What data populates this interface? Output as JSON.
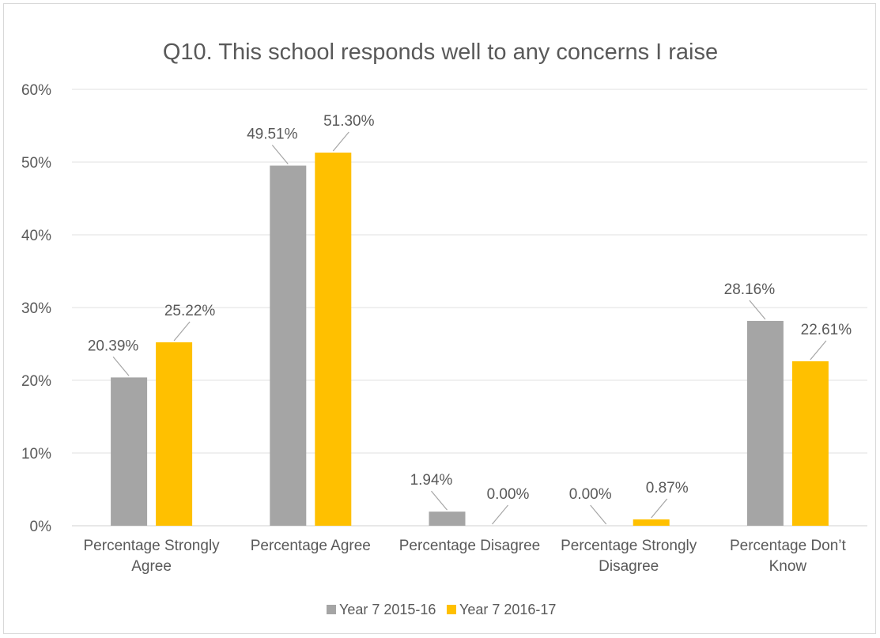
{
  "chart_data": {
    "type": "bar",
    "title": "Q10. This school responds well to any concerns I raise",
    "xlabel": "",
    "ylabel": "",
    "categories": [
      [
        "Percentage Strongly",
        "Agree"
      ],
      [
        "Percentage Agree"
      ],
      [
        "Percentage Disagree"
      ],
      [
        "Percentage Strongly",
        "Disagree"
      ],
      [
        "Percentage Don’t",
        "Know"
      ]
    ],
    "series": [
      {
        "name": "Year 7 2015-16",
        "color": "#a5a5a5",
        "values": [
          20.39,
          49.51,
          1.94,
          0.0,
          28.16
        ],
        "labels": [
          "20.39%",
          "49.51%",
          "1.94%",
          "0.00%",
          "28.16%"
        ]
      },
      {
        "name": "Year 7 2016-17",
        "color": "#ffc000",
        "values": [
          25.22,
          51.3,
          0.0,
          0.87,
          22.61
        ],
        "labels": [
          "25.22%",
          "51.30%",
          "0.00%",
          "0.87%",
          "22.61%"
        ]
      }
    ],
    "ylim": [
      0,
      60
    ],
    "yticks": [
      "0%",
      "10%",
      "20%",
      "30%",
      "40%",
      "50%",
      "60%"
    ],
    "grid": true,
    "legend": "bottom"
  }
}
